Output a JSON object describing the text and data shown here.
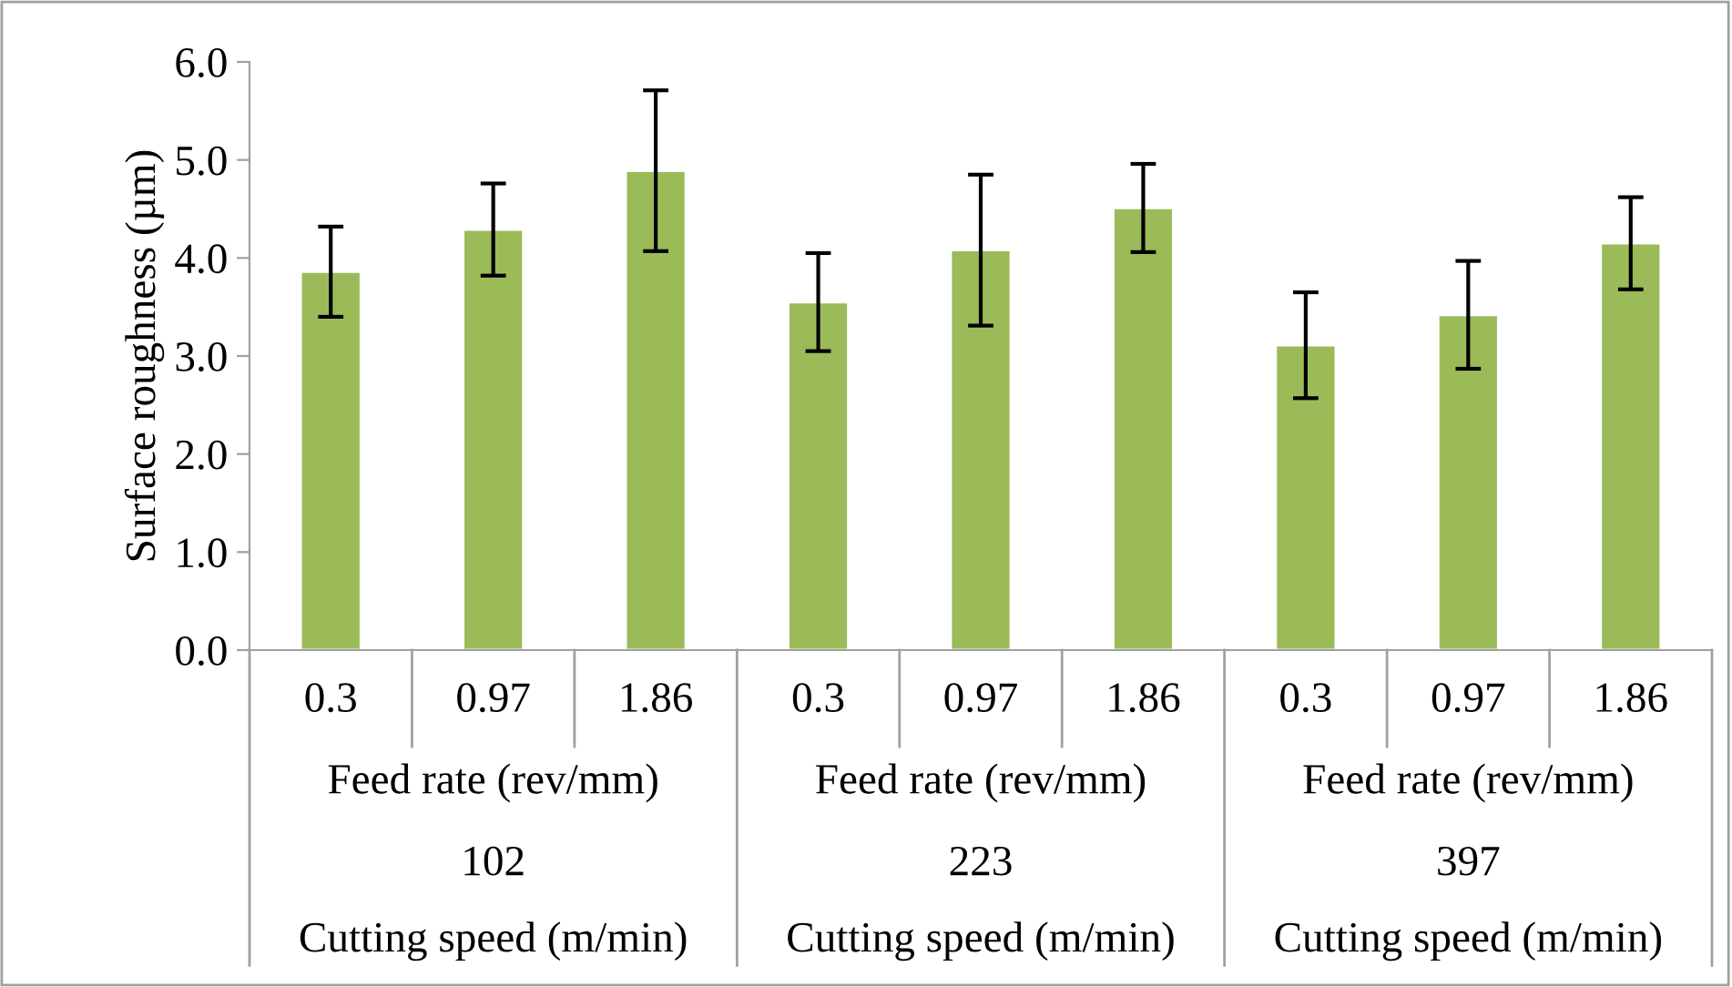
{
  "chart_data": {
    "type": "bar",
    "ylabel": "Surface roughness (µm)",
    "categories": [
      "0.3",
      "0.97",
      "1.86",
      "0.3",
      "0.97",
      "1.86",
      "0.3",
      "0.97",
      "1.86"
    ],
    "values": [
      3.86,
      4.29,
      4.89,
      3.55,
      4.08,
      4.51,
      3.11,
      3.42,
      4.15
    ],
    "errors": [
      0.46,
      0.47,
      0.82,
      0.5,
      0.77,
      0.45,
      0.54,
      0.55,
      0.47
    ],
    "color": "#9bbb59",
    "ylim": [
      0,
      6
    ],
    "yticks": [
      {
        "value": 0,
        "label": "0.0"
      },
      {
        "value": 1,
        "label": "1.0"
      },
      {
        "value": 2,
        "label": "2.0"
      },
      {
        "value": 3,
        "label": "3.0"
      },
      {
        "value": 4,
        "label": "4.0"
      },
      {
        "value": 5,
        "label": "5.0"
      },
      {
        "value": 6,
        "label": "6.0"
      }
    ],
    "annotations": [
      "Feed rate (rev/mm)",
      "Feed rate (rev/mm)",
      "Feed rate (rev/mm)",
      "102",
      "223",
      "397",
      "Cutting speed (m/min)",
      "Cutting speed (m/min)",
      "Cutting speed (m/min)"
    ],
    "grid": false,
    "legend": false
  }
}
